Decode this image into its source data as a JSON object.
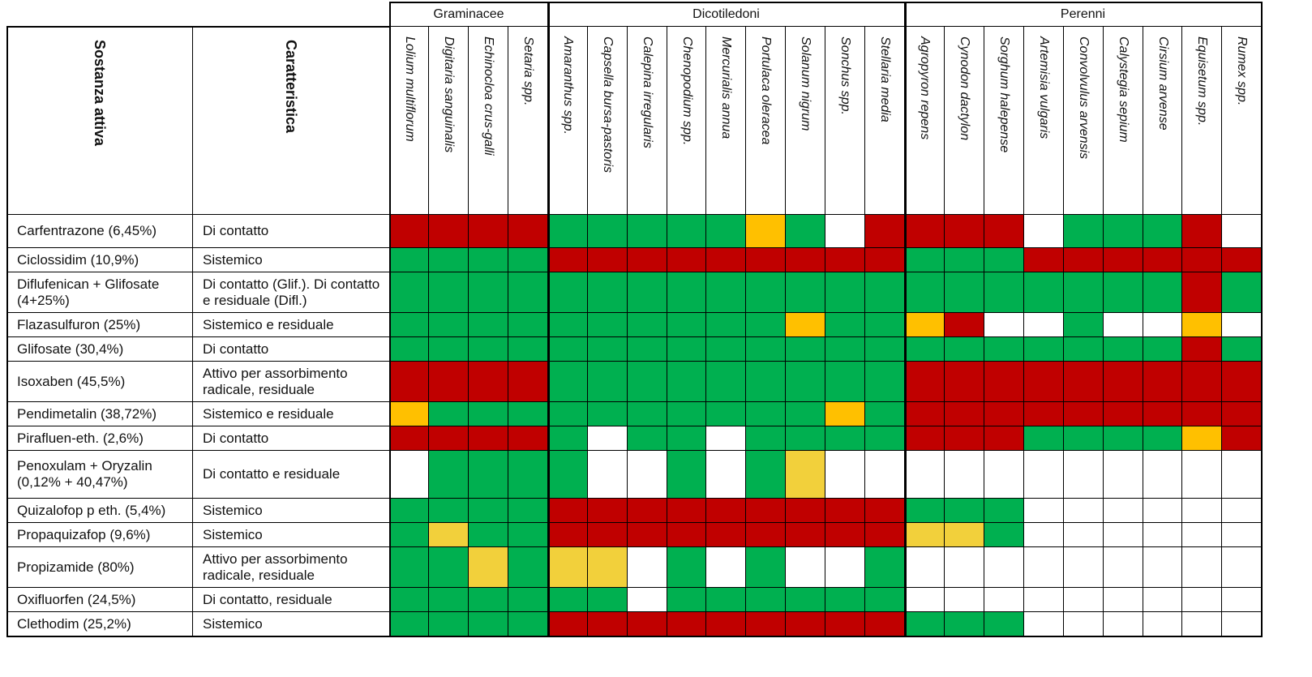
{
  "colors": {
    "R": "#c00000",
    "G": "#00b050",
    "O": "#ffc000",
    "Y": "#f2d03b",
    "W": "#ffffff"
  },
  "header": {
    "substance_label": "Sostanza attiva",
    "characteristic_label": "Caratteristica"
  },
  "groups": [
    {
      "label": "Graminacee",
      "count": 4
    },
    {
      "label": "Dicotiledoni",
      "count": 9
    },
    {
      "label": "Perenni",
      "count": 9
    }
  ],
  "species": [
    "Lolium multiflorum",
    "Digitaria sanguinalis",
    "Echinocloa crus-galli",
    "Setaria spp.",
    "Amaranthus spp.",
    "Capsella bursa-pastoris",
    "Calepina irregularis",
    "Chenopodium spp.",
    "Mercurialis annua",
    "Portulaca oleracea",
    "Solanum nigrum",
    "Sonchus spp.",
    "Stellaria media",
    "Agropyron repens",
    "Cynodon dactylon",
    "Sorghum halepense",
    "Artemisia vulgaris",
    "Convolvulus arvensis",
    "Calystegia sepium",
    "Cirsium arvense",
    "Equisetum spp.",
    "Rumex spp."
  ],
  "rows": [
    {
      "substance": "Carfentrazone (6,45%)",
      "characteristic": "Di contatto",
      "cells": "RRRRGGGGGOGWRRRRWGGGRW"
    },
    {
      "substance": "Ciclossidim (10,9%)",
      "characteristic": "Sistemico",
      "cells": "GGGGRRRRRRRRRGGGRRRRRR"
    },
    {
      "substance": "Diflufenican + Glifosate (4+25%)",
      "characteristic": "Di contatto (Glif.). Di contatto e residuale (Difl.)",
      "cells": "GGGGGGGGGGGGGGGGGGGGRG"
    },
    {
      "substance": "Flazasulfuron (25%)",
      "characteristic": "Sistemico e residuale",
      "cells": "GGGGGGGGGGOGGORWWGWWOW"
    },
    {
      "substance": "Glifosate (30,4%)",
      "characteristic": "Di contatto",
      "cells": "GGGGGGGGGGGGGGGGGGGGRG"
    },
    {
      "substance": "Isoxaben (45,5%)",
      "characteristic": "Attivo per assorbimento radicale, residuale",
      "cells": "RRRRGGGGGGGGGRRRRRRRRR"
    },
    {
      "substance": "Pendimetalin (38,72%)",
      "characteristic": "Sistemico e residuale",
      "cells": "OGGGGGGGGGGOGRRRRRRRRR"
    },
    {
      "substance": "Pirafluen-eth. (2,6%)",
      "characteristic": "Di contatto",
      "cells": "RRRRGWGGWGGGGRRRGGGGOR"
    },
    {
      "substance": "Penoxulam + Oryzalin (0,12% + 40,47%)",
      "characteristic": "Di contatto e residuale",
      "cells": "WGGGGWWGWGYWWWWWWWWWWW"
    },
    {
      "substance": "Quizalofop p eth. (5,4%)",
      "characteristic": "Sistemico",
      "cells": "GGGGRRRRRRRRRGGGWWWWWW"
    },
    {
      "substance": "Propaquizafop (9,6%)",
      "characteristic": "Sistemico",
      "cells": "GYGGRRRRRRRRRYYGWWWWWW"
    },
    {
      "substance": "Propizamide (80%)",
      "characteristic": "Attivo per assorbimento radicale, residuale",
      "cells": "GGYGYYWGWGWWGWWWWWWWWW"
    },
    {
      "substance": "Oxifluorfen (24,5%)",
      "characteristic": "Di contatto, residuale",
      "cells": "GGGGGGWGGGGGGWWWWWWWWW"
    },
    {
      "substance": "Clethodim (25,2%)",
      "characteristic": "Sistemico",
      "cells": "GGGGRRRRRRRRRGGGWWWWWW"
    }
  ]
}
